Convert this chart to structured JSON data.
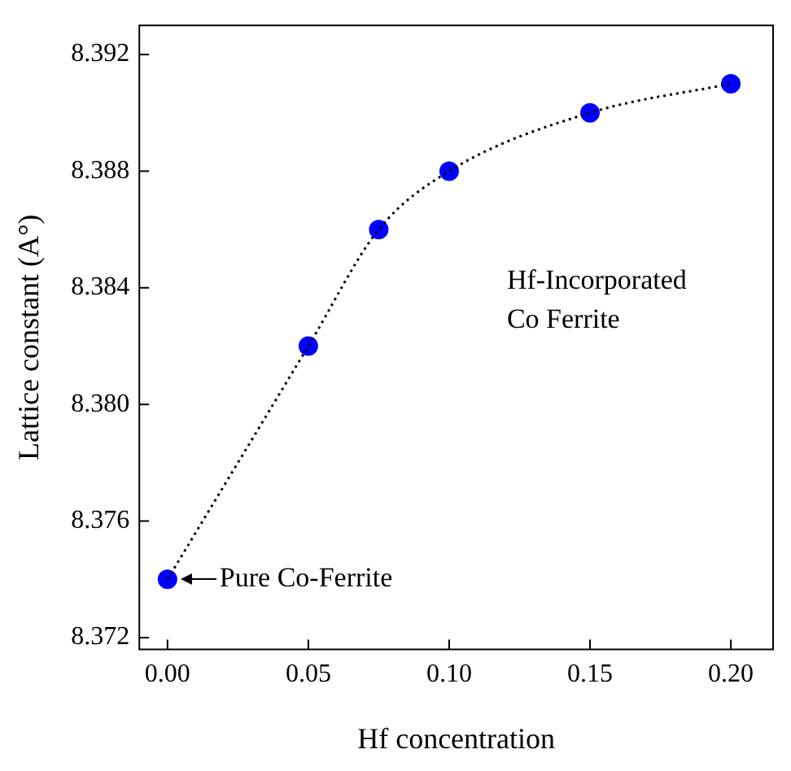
{
  "chart_data": {
    "type": "scatter",
    "xlabel": "Hf concentration",
    "ylabel": "Lattice constant (A°)",
    "series": [
      {
        "type": "line",
        "color": "#000000",
        "line_style": "dotted",
        "marker": "none",
        "x": [
          0,
          0.05,
          0.075,
          0.1,
          0.15,
          0.2
        ],
        "values": [
          8.374,
          8.382,
          8.386,
          8.388,
          8.39,
          8.391
        ]
      },
      {
        "color": "#0000ff",
        "marker": "circle",
        "x": [
          0,
          0.05,
          0.075,
          0.1,
          0.15,
          0.2
        ],
        "values": [
          8.374,
          8.382,
          8.386,
          8.388,
          8.39,
          8.391
        ]
      }
    ],
    "xlim": [
      -0.01,
      0.215
    ],
    "ylim": [
      8.3716,
      8.393
    ],
    "xticks": [
      {
        "value": 0,
        "label": "0.00"
      },
      {
        "value": 0.05,
        "label": "0.05"
      },
      {
        "value": 0.1,
        "label": "0.10"
      },
      {
        "value": 0.15,
        "label": "0.15"
      },
      {
        "value": 0.2,
        "label": "0.20"
      }
    ],
    "yticks": [
      {
        "value": 8.372,
        "label": "8.372"
      },
      8.376,
      {
        "value": 8.38,
        "label": "8.380"
      },
      8.384,
      8.388,
      8.392
    ],
    "grid": false,
    "legend": false,
    "annotations": [
      "Hf-Incorporated\nCo Ferrite",
      {
        "text": "Pure Co-Ferrite",
        "x": 0,
        "y": 8.374
      }
    ]
  }
}
